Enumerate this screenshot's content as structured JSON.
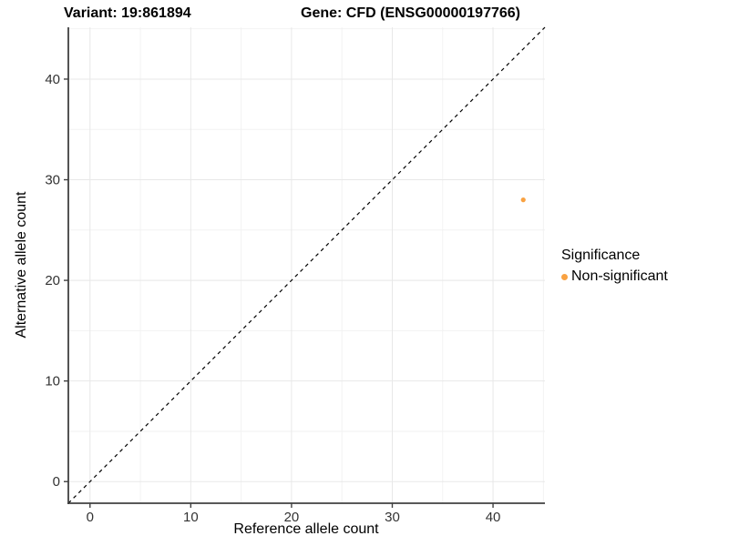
{
  "titles": {
    "variant": "Variant: 19:861894",
    "gene": "Gene: CFD (ENSG00000197766)"
  },
  "legend": {
    "title": "Significance",
    "items": [
      {
        "label": "Non-significant",
        "color": "#F9A242"
      }
    ]
  },
  "chart_data": {
    "type": "scatter",
    "title": "Variant: 19:861894   Gene: CFD (ENSG00000197766)",
    "xlabel": "Reference allele count",
    "ylabel": "Alternative allele count",
    "xlim": [
      -2.15,
      45.15
    ],
    "ylim": [
      -2.15,
      45.15
    ],
    "x_ticks": [
      0,
      10,
      20,
      30,
      40
    ],
    "y_ticks": [
      0,
      10,
      20,
      30,
      40
    ],
    "x_minor_ticks": [
      5,
      15,
      25,
      35,
      45
    ],
    "y_minor_ticks": [
      5,
      15,
      25,
      35,
      45
    ],
    "grid": true,
    "legend_position": "right",
    "series": [
      {
        "name": "Non-significant",
        "color": "#F9A242",
        "points": [
          {
            "x": 43,
            "y": 28
          }
        ]
      }
    ],
    "identity_line": {
      "slope": 1,
      "intercept": 0,
      "style": "dashed",
      "color": "#000000"
    }
  },
  "style_colors": {
    "axis_line": "#404040",
    "tick_label": "#333333",
    "grid_major": "#E8E8E8",
    "grid_minor": "#F2F2F2",
    "background": "#FFFFFF"
  }
}
